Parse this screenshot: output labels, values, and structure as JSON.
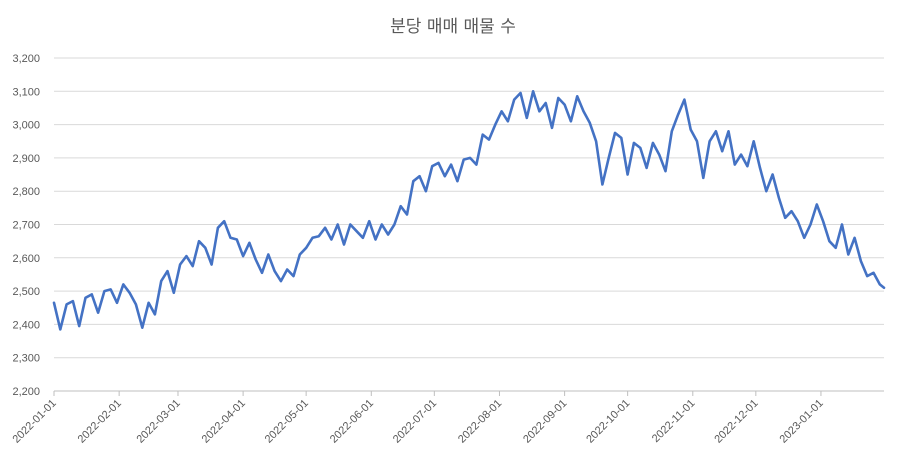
{
  "chart_data": {
    "type": "line",
    "title": "분당 매매 매물 수",
    "xlabel": "",
    "ylabel": "",
    "ylim": [
      2200,
      3200
    ],
    "yticks": [
      2200,
      2300,
      2400,
      2500,
      2600,
      2700,
      2800,
      2900,
      3000,
      3100,
      3200
    ],
    "ytick_labels": [
      "2,200",
      "2,300",
      "2,400",
      "2,500",
      "2,600",
      "2,700",
      "2,800",
      "2,900",
      "3,000",
      "3,100",
      "3,200"
    ],
    "xlim": [
      "2022-01-01",
      "2023-01-31"
    ],
    "xtick_labels": [
      "2022-01-01",
      "2022-02-01",
      "2022-03-01",
      "2022-04-01",
      "2022-05-01",
      "2022-06-01",
      "2022-07-01",
      "2022-08-01",
      "2022-09-01",
      "2022-10-01",
      "2022-11-01",
      "2022-12-01",
      "2023-01-01"
    ],
    "grid": "horizontal",
    "legend": "none",
    "series": [
      {
        "name": "",
        "color": "#4472c4",
        "x": [
          "2022-01-01",
          "2022-01-04",
          "2022-01-07",
          "2022-01-10",
          "2022-01-13",
          "2022-01-16",
          "2022-01-19",
          "2022-01-22",
          "2022-01-25",
          "2022-01-28",
          "2022-01-31",
          "2022-02-03",
          "2022-02-06",
          "2022-02-09",
          "2022-02-12",
          "2022-02-15",
          "2022-02-18",
          "2022-02-21",
          "2022-02-24",
          "2022-02-27",
          "2022-03-02",
          "2022-03-05",
          "2022-03-08",
          "2022-03-11",
          "2022-03-14",
          "2022-03-17",
          "2022-03-20",
          "2022-03-23",
          "2022-03-26",
          "2022-03-29",
          "2022-04-01",
          "2022-04-04",
          "2022-04-07",
          "2022-04-10",
          "2022-04-13",
          "2022-04-16",
          "2022-04-19",
          "2022-04-22",
          "2022-04-25",
          "2022-04-28",
          "2022-05-01",
          "2022-05-04",
          "2022-05-07",
          "2022-05-10",
          "2022-05-13",
          "2022-05-16",
          "2022-05-19",
          "2022-05-22",
          "2022-05-25",
          "2022-05-28",
          "2022-05-31",
          "2022-06-03",
          "2022-06-06",
          "2022-06-09",
          "2022-06-12",
          "2022-06-15",
          "2022-06-18",
          "2022-06-21",
          "2022-06-24",
          "2022-06-27",
          "2022-06-30",
          "2022-07-03",
          "2022-07-06",
          "2022-07-09",
          "2022-07-12",
          "2022-07-15",
          "2022-07-18",
          "2022-07-21",
          "2022-07-24",
          "2022-07-27",
          "2022-07-30",
          "2022-08-02",
          "2022-08-05",
          "2022-08-08",
          "2022-08-11",
          "2022-08-14",
          "2022-08-17",
          "2022-08-20",
          "2022-08-23",
          "2022-08-26",
          "2022-08-29",
          "2022-09-01",
          "2022-09-04",
          "2022-09-07",
          "2022-09-10",
          "2022-09-13",
          "2022-09-16",
          "2022-09-19",
          "2022-09-22",
          "2022-09-25",
          "2022-09-28",
          "2022-10-01",
          "2022-10-04",
          "2022-10-07",
          "2022-10-10",
          "2022-10-13",
          "2022-10-16",
          "2022-10-19",
          "2022-10-22",
          "2022-10-25",
          "2022-10-28",
          "2022-10-31",
          "2022-11-03",
          "2022-11-06",
          "2022-11-09",
          "2022-11-12",
          "2022-11-15",
          "2022-11-18",
          "2022-11-21",
          "2022-11-24",
          "2022-11-27",
          "2022-11-30",
          "2022-12-03",
          "2022-12-06",
          "2022-12-09",
          "2022-12-12",
          "2022-12-15",
          "2022-12-18",
          "2022-12-21",
          "2022-12-24",
          "2022-12-27",
          "2022-12-30",
          "2023-01-02",
          "2023-01-05",
          "2023-01-08",
          "2023-01-11",
          "2023-01-14",
          "2023-01-17",
          "2023-01-20",
          "2023-01-23",
          "2023-01-26",
          "2023-01-29",
          "2023-01-31"
        ],
        "values": [
          2465,
          2385,
          2460,
          2470,
          2395,
          2480,
          2490,
          2435,
          2500,
          2505,
          2465,
          2520,
          2495,
          2460,
          2390,
          2465,
          2430,
          2530,
          2560,
          2495,
          2580,
          2605,
          2575,
          2650,
          2630,
          2580,
          2690,
          2710,
          2660,
          2655,
          2605,
          2645,
          2595,
          2555,
          2610,
          2560,
          2530,
          2565,
          2545,
          2610,
          2630,
          2660,
          2665,
          2690,
          2655,
          2700,
          2640,
          2700,
          2680,
          2660,
          2710,
          2655,
          2700,
          2670,
          2700,
          2755,
          2730,
          2830,
          2845,
          2800,
          2875,
          2885,
          2845,
          2880,
          2830,
          2895,
          2900,
          2880,
          2970,
          2955,
          3000,
          3040,
          3010,
          3075,
          3095,
          3020,
          3100,
          3040,
          3065,
          2990,
          3080,
          3060,
          3010,
          3085,
          3040,
          3005,
          2950,
          2820,
          2900,
          2975,
          2960,
          2850,
          2945,
          2930,
          2870,
          2945,
          2910,
          2860,
          2980,
          3030,
          3075,
          2985,
          2950,
          2840,
          2950,
          2980,
          2920,
          2980,
          2880,
          2910,
          2875,
          2950,
          2870,
          2800,
          2850,
          2780,
          2720,
          2740,
          2710,
          2660,
          2700,
          2760,
          2710,
          2650,
          2630,
          2700,
          2610,
          2660,
          2590,
          2545,
          2555,
          2520,
          2510
        ]
      }
    ]
  }
}
